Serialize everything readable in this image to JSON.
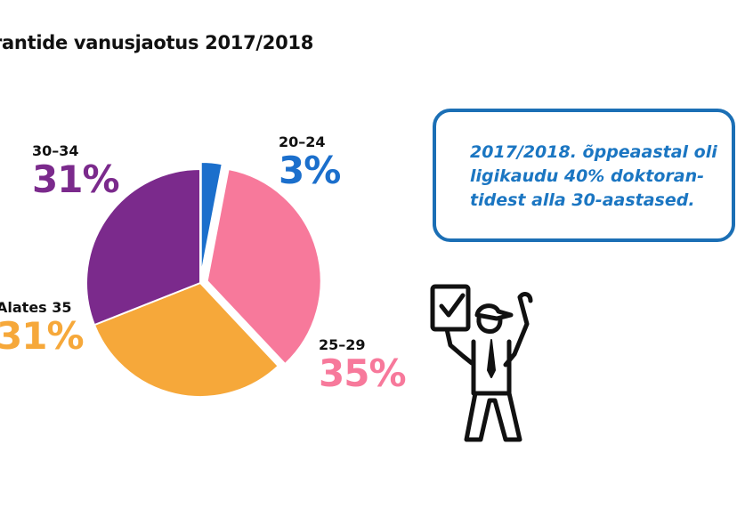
{
  "title": "rantide vanusjaotus 2017/2018",
  "chart_data": {
    "type": "pie",
    "title": "rantide vanusjaotus 2017/2018",
    "slices": [
      {
        "label": "20–24",
        "value": 3,
        "display": "3%",
        "color": "#1b6fcc",
        "exploded": true
      },
      {
        "label": "25–29",
        "value": 35,
        "display": "35%",
        "color": "#f7799b",
        "exploded": true
      },
      {
        "label": "Alates 35",
        "value": 31,
        "display": "31%",
        "color": "#f6a83a",
        "exploded": false
      },
      {
        "label": "30–34",
        "value": 31,
        "display": "31%",
        "color": "#7b2a8c",
        "exploded": false
      }
    ]
  },
  "callout": {
    "text": "2017/2018. õppeaastal oli\nligikaudu 40% doktoran-\ntidest alla 30-aastased.",
    "border_color": "#1b6fb5",
    "text_color": "#1b76c2"
  },
  "illustration": {
    "icon": "person-with-checklist-icon"
  }
}
